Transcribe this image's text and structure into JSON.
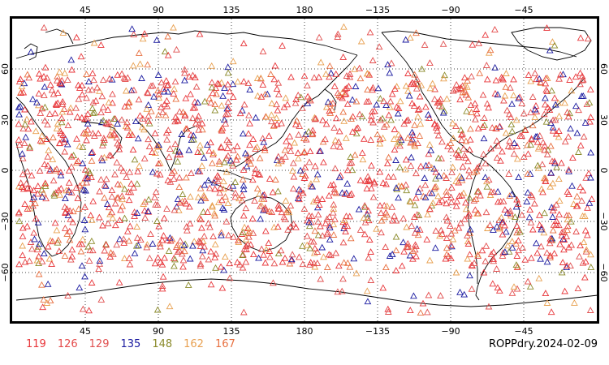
{
  "caption": "ROPPdry.2024-02-09",
  "top_lon_labels": [
    "45",
    "90",
    "135",
    "180",
    "−135",
    "−90",
    "−45"
  ],
  "bottom_lon_labels": [
    "45",
    "90",
    "135",
    "180",
    "−135",
    "−90",
    "−45"
  ],
  "left_lat_labels": [
    "60",
    "30",
    "0",
    "−30",
    "−60"
  ],
  "right_lat_labels": [
    "60",
    "30",
    "0",
    "−30",
    "−60"
  ],
  "legend": [
    {
      "label": "119",
      "color": "#e8363a"
    },
    {
      "label": "126",
      "color": "#e44a4a"
    },
    {
      "label": "129",
      "color": "#e05050"
    },
    {
      "label": "135",
      "color": "#1a1aa0"
    },
    {
      "label": "148",
      "color": "#8a8a2a"
    },
    {
      "label": "162",
      "color": "#e8a050"
    },
    {
      "label": "167",
      "color": "#e87040"
    }
  ],
  "colors": {
    "coastline": "#000000",
    "grid": "#000000",
    "frame": "#000000"
  }
}
